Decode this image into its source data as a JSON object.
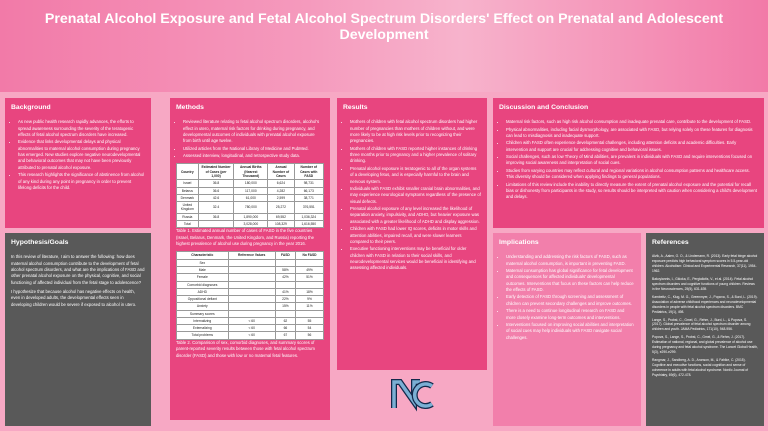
{
  "header": {
    "title": "Prenatal Alcohol Exposure and Fetal Alcohol Spectrum Disorders' Effect on Prenatal and Adolescent Development"
  },
  "background": {
    "title": "Background",
    "items": [
      "As new public health research rapidly advances, the efforts to spread awareness surrounding the severity of the teratogenic effects of fetal alcohol spectrum disorders have increased.",
      "Evidence that links developmental delays and physical abnormalities to maternal alcohol consumption during pregnancy has emerged. New studies explore negative neurodevelopmental and behavioral outcomes that may not have been previously attributed to prenatal alcohol exposure.",
      "This research highlights the significance of abstinence from alcohol of any kind during any point in pregnancy in order to prevent lifelong deficits for the child."
    ]
  },
  "hypothesis": {
    "title": "Hypothesis/Goals",
    "items": [
      "In this review of literature, I aim to answer the following: how does maternal alcohol consumption contribute to the development of fetal alcohol spectrum disorders, and what are the implications of FASD and other prenatal alcohol exposure on the physical, cognitive, and social functioning of affected individual from the fetal stage to adolescence?",
      "I hypothesize that because alcohol has negative effects on health, even in developed adults, the developmental effects seen in developing children would be severe if exposed to alcohol in utero."
    ]
  },
  "methods": {
    "title": "Methods",
    "items": [
      "Reviewed literature relating to fetal alcohol spectrum disorders, alcohol's effect in utero, maternal risk factors for drinking during pregnancy, and developmental outcomes of individuals with prenatal alcohol exposure from birth until age twelve.",
      "Utilized articles from the National Library of Medicine and PubMed.",
      "Assessed interview, longitudinal, and retrospective study data."
    ],
    "table1": {
      "headers": [
        "Country",
        "Estimated Number of Cases (per 1,000)",
        "Annual Births (Nearest Thousand)",
        "Annual Number of Cases",
        "Number of Cases with FASD"
      ],
      "rows": [
        [
          "Israel",
          "36.8",
          "180,000",
          "6,624",
          "98,731"
        ],
        [
          "Belarus",
          "36.6",
          "117,000",
          "4,282",
          "66,173"
        ],
        [
          "Denmark",
          "42.6",
          "61,000",
          "2,599",
          "38,771"
        ],
        [
          "United Kingdom",
          "32.4",
          "780,000",
          "25,272",
          "376,551"
        ],
        [
          "Russia",
          "36.8",
          "1,890,000",
          "69,552",
          "1,036,324"
        ],
        [
          "Total",
          "",
          "3,028,000",
          "108,329",
          "1,616,550"
        ]
      ],
      "caption": "Table 1. Estimated annual number of cases of FASD in the five countries (Israel, Belarus, Denmark, the United Kingdom, and Russia) reporting the highest prevalence of alcohol use during pregnancy in the year 2016."
    },
    "table2": {
      "headers": [
        "Characteristic",
        "Reference Values",
        "FASD",
        "No FASD"
      ],
      "rows": [
        [
          "Sex",
          "",
          "",
          ""
        ],
        [
          "Male",
          "",
          "58%",
          "49%"
        ],
        [
          "Female",
          "",
          "42%",
          "51%"
        ],
        [
          "Comorbid diagnoses",
          "",
          "",
          ""
        ],
        [
          "ADHD",
          "",
          "41%",
          "18%"
        ],
        [
          "Oppositional defiant",
          "",
          "22%",
          "9%"
        ],
        [
          "Anxiety",
          "",
          "15%",
          "11%"
        ],
        [
          "Summary scores",
          "",
          "",
          ""
        ],
        [
          "Internalizing",
          "< 60",
          "62",
          "55"
        ],
        [
          "Externalizing",
          "< 60",
          "66",
          "54"
        ],
        [
          "Total problems",
          "< 60",
          "67",
          "56"
        ]
      ],
      "caption": "Table 2. Comparison of sex, comorbid diagnoses, and summary scores of parent-reported severity results between those with fetal alcohol spectrum disorder (FASD) and those with low or no maternal fetal features."
    }
  },
  "results": {
    "title": "Results",
    "items": [
      "Mothers of children with fetal alcohol spectrum disorders had higher number of pregnancies than mothers of children without, and were more likely to be at high risk levels prior to recognizing their pregnancies.",
      "Mothers of children with FASD reported higher instances of drinking three months prior to pregnancy and a higher prevalence of solitary drinking.",
      "Prenatal alcohol exposure is teratogenic to all of the organ systems of a developing fetus, and is especially harmful to the brain and nervous system.",
      "Individuals with FASD exhibit smaller cranial brain abnormalities, and may experience neurological symptoms regardless of the presence of visual defects.",
      "Prenatal alcohol exposure of any level increased the likelihood of separation anxiety, impulsivity, and ADHD, but heavier exposure was associated with a greater likelihood of ADHD and display aggression.",
      "Children with FASD had lower IQ scores, deficits in motor skills and attention abilities, impaired recall, and were slower learners compared to their peers.",
      "Executive functioning interventions may be beneficial for older children with FASD in relation to their social skills, and neurodevelopmental services would be beneficial in identifying and assessing affected individuals."
    ]
  },
  "discussion": {
    "title": "Discussion and Conclusion",
    "items": [
      "Maternal risk factors, such as high risk alcohol consumption and inadequate prenatal care, contribute to the development of FASD.",
      "Physical abnormalities, including facial dysmorphology, are associated with FASD, but relying solely on these features for diagnosis can lead to misdiagnosis and inadequate support.",
      "Children with FASD often experience developmental challenges, including attention deficits and academic difficulties. Early intervention and support are crucial for addressing cognitive and behavioral issues.",
      "Social challenges, such as low Theory of Mind abilities, are prevalent in individuals with FASD and require interventions focused on improving social awareness and interpretation of social cues.",
      "Studies from varying countries may reflect cultural and regional variations in alcohol consumption patterns and healthcare access. This diversity should be considered when applying findings to general populations.",
      "Limitations of this review include the inability to directly measure the extent of prenatal alcohol exposure and the potential for recall bias or dishonesty from participants in the study, so results should be interpreted with caution when considering a child's development and delays."
    ]
  },
  "implications": {
    "title": "Implications",
    "items": [
      "Understanding and addressing the risk factors of FASD, such as maternal alcohol consumption, is important in preventing FASD.",
      "Maternal consumption has global significance for fetal development and consequences for affected individuals' developmental outcomes. Interventions that focus on these factors can help reduce the effects of FASD.",
      "Early detection of FASD through screening and assessment of children can prevent secondary challenges and improve outcomes.",
      "There is a need to continue longitudinal research on FASD and more closely examine long-term outcomes and interventions.",
      "Interventions focused on improving social abilities and interpretation of social cues may help individuals with FASD navigate social challenges."
    ]
  },
  "references": {
    "title": "References",
    "items": [
      "Alvik, A., Aalen, O. O., & Lindemann, R. (2013). Early fetal binge alcohol exposure predicts high behavioral symptom scores in 5.5-year-old children. Alcoholism: Clinical and Experimental Research, 37(11), 1954-1962.",
      "Bakoyiannis, I., Gkioka, E., Pergialiotis, V., et al. (2014). Fetal alcohol spectrum disorders and cognitive functions of young children. Reviews in the Neurosciences, 25(5), 631-639.",
      "Kambeitz, C., Klug, M. G., Greenmyer, J., Popova, S., & Burd, L. (2019). Association of adverse childhood experiences and neurodevelopmental disorders in people with fetal alcohol spectrum disorders. BMC Pediatrics, 19(1), 498.",
      "Lange, S., Probst, C., Gmel, G., Rehm, J., Burd, L., & Popova, S. (2017). Global prevalence of fetal alcohol spectrum disorder among children and youth. JAMA Pediatrics, 171(10), 948-956.",
      "Popova, S., Lange, S., Probst, C., Gmel, G., & Rehm, J. (2017). Estimation of national, regional, and global prevalence of alcohol use during pregnancy and fetal alcohol syndrome. The Lancet Global Health, 5(3), e290-e299.",
      "Rangmar, J., Sandberg, A. D., Aronson, M., & Fahlke, C. (2015). Cognitive and executive functions, social cognition and sense of coherence in adults with fetal alcohol syndrome. Nordic Journal of Psychiatry, 69(6), 472-478."
    ]
  }
}
